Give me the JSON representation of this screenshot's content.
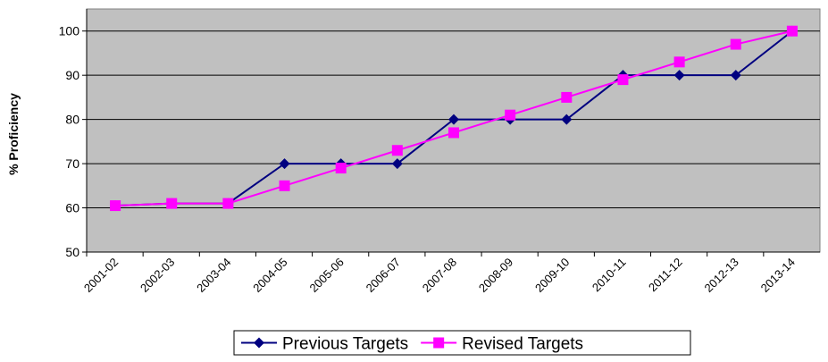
{
  "chart_data": {
    "type": "line",
    "y_label": "% Proficiency",
    "categories": [
      "2001-02",
      "2002-03",
      "2003-04",
      "2004-05",
      "2005-06",
      "2006-07",
      "2007-08",
      "2008-09",
      "2009-10",
      "2010-11",
      "2011-12",
      "2012-13",
      "2013-14"
    ],
    "series": [
      {
        "name": "Previous Targets",
        "color": "#000080",
        "marker": "diamond",
        "values": [
          60.5,
          61,
          61,
          70,
          70,
          70,
          80,
          80,
          80,
          90,
          90,
          90,
          100
        ]
      },
      {
        "name": "Revised Targets",
        "color": "#ff00ff",
        "marker": "square",
        "values": [
          60.5,
          61,
          61,
          65,
          69,
          73,
          77,
          81,
          85,
          89,
          93,
          97,
          100
        ]
      }
    ],
    "ylim": [
      50,
      105
    ],
    "yticks": [
      50,
      60,
      70,
      80,
      90,
      100
    ],
    "grid": true,
    "plot_background": "#c0c0c0",
    "legend": "bottom"
  }
}
